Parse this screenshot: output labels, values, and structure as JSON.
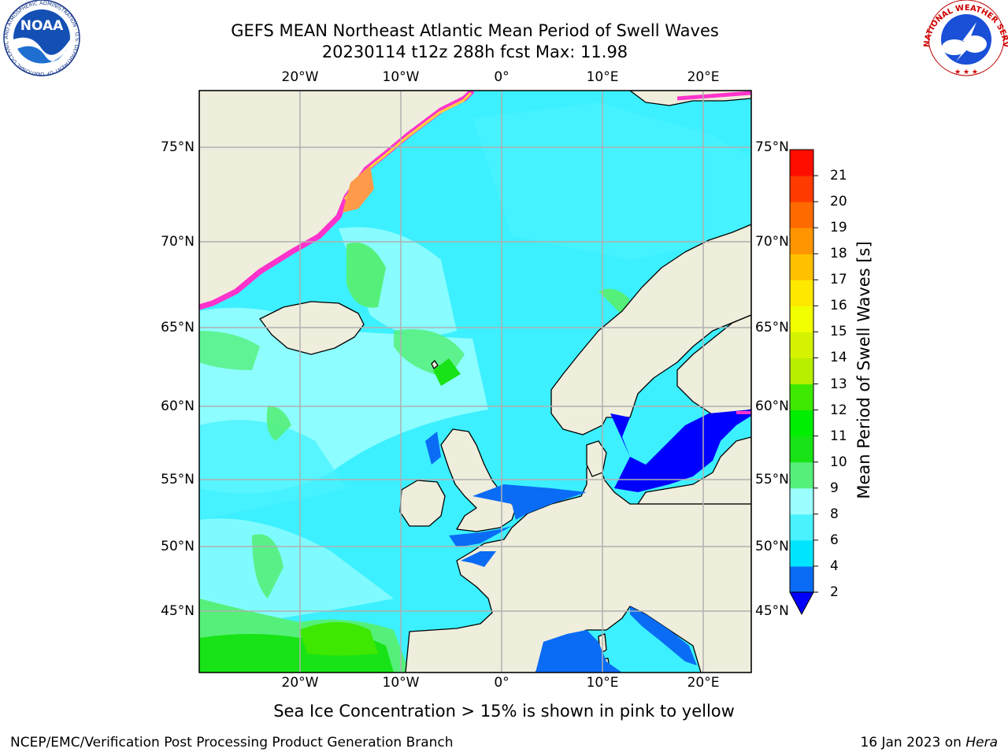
{
  "title_line1": "GEFS MEAN Northeast Atlantic Mean Period of Swell Waves",
  "title_line2": "20230114 t12z 288h fcst   Max: 11.98",
  "note": "Sea Ice Concentration > 15% is shown in pink to yellow",
  "footer_left": "NCEP/EMC/Verification Post Processing Product Generation Branch",
  "footer_right_date": "16 Jan 2023 on ",
  "footer_right_machine": "Hera",
  "map": {
    "lon_labels": [
      "20°W",
      "10°W",
      "0°",
      "10°E",
      "20°E"
    ],
    "lat_labels": [
      "75°N",
      "70°N",
      "65°N",
      "60°N",
      "55°N",
      "50°N",
      "45°N"
    ]
  },
  "colorbar": {
    "title": "Mean Period of Swell Waves [s]",
    "ticks": [
      "2",
      "4",
      "6",
      "8",
      "9",
      "10",
      "11",
      "12",
      "13",
      "14",
      "15",
      "16",
      "17",
      "18",
      "19",
      "20",
      "21"
    ],
    "colors": [
      "#0a6cf5",
      "#00e5ff",
      "#48f2ff",
      "#9bffff",
      "#55f07a",
      "#18e316",
      "#00ee00",
      "#3ee800",
      "#b8ee00",
      "#d5f200",
      "#f2ff00",
      "#ffe800",
      "#ffc000",
      "#ff9500",
      "#ff6a00",
      "#ff3a00",
      "#ff0e00"
    ],
    "under_color": "#0000ff"
  },
  "colors": {
    "ocean": "#3cf0ff",
    "land": "#efeddc",
    "grid": "#b0b0b0",
    "ice": "#ff33cc"
  },
  "logos": {
    "noaa_text": "NOAA",
    "noaa_ring": "NATIONAL OCEANIC AND ATMOSPHERIC ADMINISTRATION · U.S. DEPARTMENT OF COMMERCE",
    "nws_ring": "NATIONAL WEATHER SERVICE"
  }
}
